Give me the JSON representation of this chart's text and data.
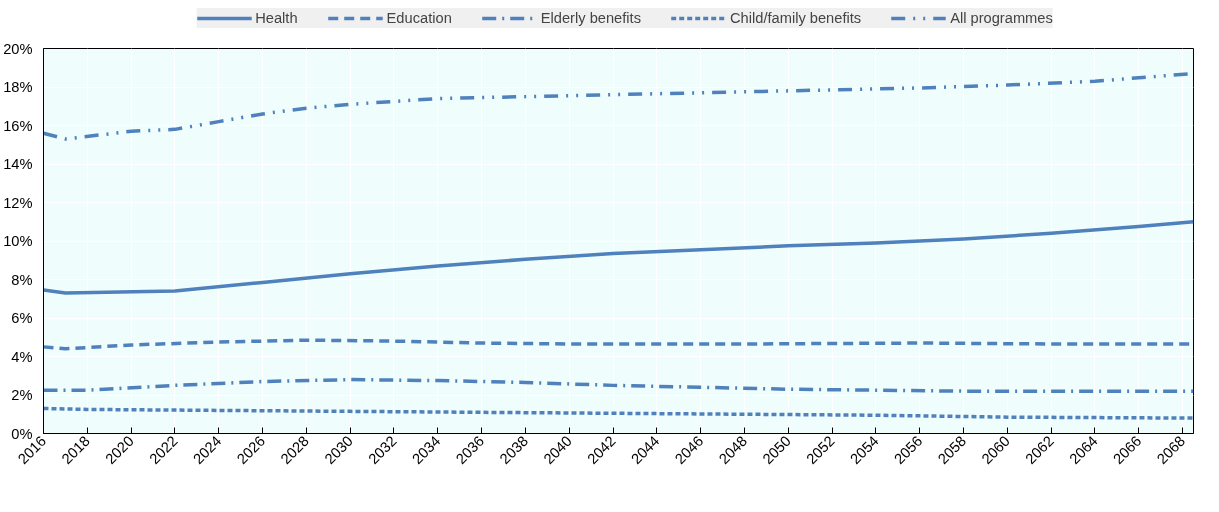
{
  "chart_data": {
    "type": "line",
    "xlim": [
      2016,
      2068.5
    ],
    "xticks": [
      2016,
      2018,
      2020,
      2022,
      2024,
      2026,
      2028,
      2030,
      2032,
      2034,
      2036,
      2038,
      2040,
      2042,
      2044,
      2046,
      2048,
      2050,
      2052,
      2054,
      2056,
      2058,
      2060,
      2062,
      2064,
      2066,
      2068
    ],
    "ylim": [
      0,
      20
    ],
    "yticks": [
      {
        "value": 0,
        "label": "0%"
      },
      {
        "value": 2,
        "label": "2%"
      },
      {
        "value": 4,
        "label": "4%"
      },
      {
        "value": 6,
        "label": "6%"
      },
      {
        "value": 8,
        "label": "8%"
      },
      {
        "value": 10,
        "label": "10%"
      },
      {
        "value": 12,
        "label": "12%"
      },
      {
        "value": 14,
        "label": "14%"
      },
      {
        "value": 16,
        "label": "16%"
      },
      {
        "value": 18,
        "label": "18%"
      },
      {
        "value": 20,
        "label": "20%"
      }
    ],
    "grid": true,
    "legend": "top",
    "series": [
      {
        "name": "Health",
        "color": "#4f81bd",
        "line_style": "solid",
        "x": [
          2016,
          2017,
          2022,
          2026,
          2030,
          2034,
          2038,
          2042,
          2046,
          2050,
          2054,
          2058,
          2062,
          2066,
          2068.5
        ],
        "values": [
          7.45,
          7.3,
          7.4,
          7.85,
          8.3,
          8.7,
          9.05,
          9.35,
          9.55,
          9.75,
          9.9,
          10.1,
          10.4,
          10.75,
          11.0
        ]
      },
      {
        "name": "Education",
        "color": "#4f81bd",
        "line_style": "dashed",
        "x": [
          2016,
          2017,
          2020,
          2024,
          2028,
          2032,
          2036,
          2040,
          2048,
          2056,
          2062,
          2068.5
        ],
        "values": [
          4.5,
          4.4,
          4.6,
          4.75,
          4.85,
          4.8,
          4.7,
          4.65,
          4.65,
          4.7,
          4.65,
          4.65
        ]
      },
      {
        "name": "Elderly benefits",
        "color": "#4f81bd",
        "line_style": "dashdot",
        "x": [
          2016,
          2018,
          2022,
          2026,
          2030,
          2034,
          2038,
          2042,
          2046,
          2050,
          2054,
          2058,
          2062,
          2068.5
        ],
        "values": [
          2.25,
          2.25,
          2.5,
          2.7,
          2.8,
          2.75,
          2.65,
          2.5,
          2.4,
          2.3,
          2.25,
          2.2,
          2.2,
          2.2
        ]
      },
      {
        "name": "Child/family benefits",
        "color": "#4f81bd",
        "line_style": "dotted",
        "x": [
          2016,
          2018,
          2024,
          2030,
          2036,
          2042,
          2048,
          2054,
          2060,
          2068.5
        ],
        "values": [
          1.3,
          1.25,
          1.2,
          1.15,
          1.1,
          1.05,
          1.0,
          0.95,
          0.85,
          0.8
        ]
      },
      {
        "name": "All programmes",
        "color": "#4f81bd",
        "line_style": "dashdotdot",
        "x": [
          2016,
          2017,
          2020,
          2022,
          2024,
          2026,
          2028,
          2030,
          2032,
          2034,
          2036,
          2038,
          2040,
          2044,
          2048,
          2052,
          2056,
          2060,
          2064,
          2068.5
        ],
        "values": [
          15.6,
          15.3,
          15.7,
          15.8,
          16.2,
          16.6,
          16.9,
          17.1,
          17.25,
          17.4,
          17.45,
          17.5,
          17.55,
          17.65,
          17.75,
          17.85,
          17.95,
          18.1,
          18.3,
          18.7
        ]
      }
    ]
  }
}
